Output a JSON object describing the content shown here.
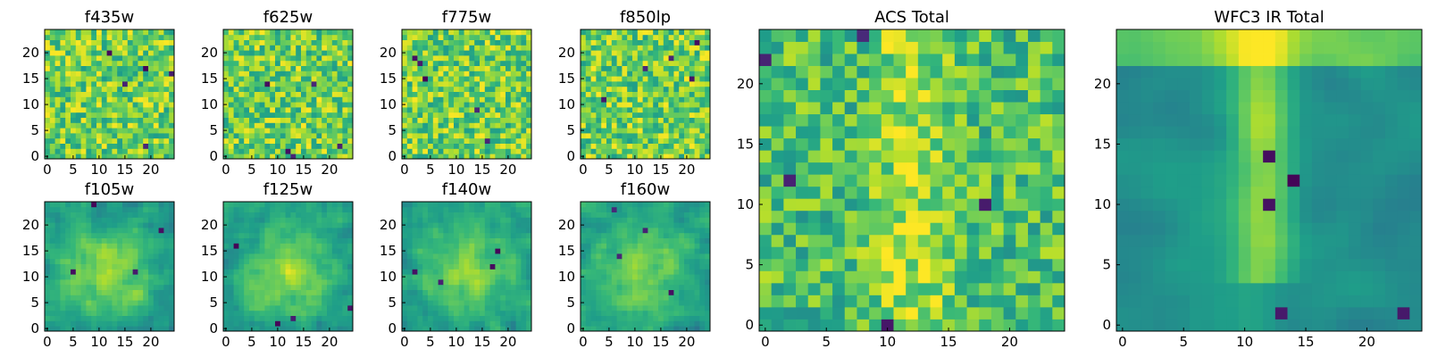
{
  "chart_data": [
    {
      "type": "heatmap",
      "title": "f435w",
      "colormap": "viridis",
      "rows": 25,
      "cols": 25,
      "xlim": [
        0,
        24
      ],
      "ylim": [
        0,
        24
      ],
      "xticks": [
        0,
        5,
        10,
        15,
        20
      ],
      "yticks": [
        0,
        5,
        10,
        15,
        20
      ],
      "structure": "noise",
      "seed": 11
    },
    {
      "type": "heatmap",
      "title": "f625w",
      "colormap": "viridis",
      "rows": 25,
      "cols": 25,
      "xlim": [
        0,
        24
      ],
      "ylim": [
        0,
        24
      ],
      "xticks": [
        0,
        5,
        10,
        15,
        20
      ],
      "yticks": [
        0,
        5,
        10,
        15,
        20
      ],
      "structure": "noise",
      "seed": 23
    },
    {
      "type": "heatmap",
      "title": "f775w",
      "colormap": "viridis",
      "rows": 25,
      "cols": 25,
      "xlim": [
        0,
        24
      ],
      "ylim": [
        0,
        24
      ],
      "xticks": [
        0,
        5,
        10,
        15,
        20
      ],
      "yticks": [
        0,
        5,
        10,
        15,
        20
      ],
      "structure": "noise",
      "seed": 37
    },
    {
      "type": "heatmap",
      "title": "f850lp",
      "colormap": "viridis",
      "rows": 25,
      "cols": 25,
      "xlim": [
        0,
        24
      ],
      "ylim": [
        0,
        24
      ],
      "xticks": [
        0,
        5,
        10,
        15,
        20
      ],
      "yticks": [
        0,
        5,
        10,
        15,
        20
      ],
      "structure": "noise",
      "seed": 41
    },
    {
      "type": "heatmap",
      "title": "f105w",
      "colormap": "viridis",
      "rows": 25,
      "cols": 25,
      "xlim": [
        0,
        24
      ],
      "ylim": [
        0,
        24
      ],
      "xticks": [
        0,
        5,
        10,
        15,
        20
      ],
      "yticks": [
        0,
        5,
        10,
        15,
        20
      ],
      "structure": "smooth-blob",
      "seed": 53
    },
    {
      "type": "heatmap",
      "title": "f125w",
      "colormap": "viridis",
      "rows": 25,
      "cols": 25,
      "xlim": [
        0,
        24
      ],
      "ylim": [
        0,
        24
      ],
      "xticks": [
        0,
        5,
        10,
        15,
        20
      ],
      "yticks": [
        0,
        5,
        10,
        15,
        20
      ],
      "structure": "smooth-blob",
      "seed": 67
    },
    {
      "type": "heatmap",
      "title": "f140w",
      "colormap": "viridis",
      "rows": 25,
      "cols": 25,
      "xlim": [
        0,
        24
      ],
      "ylim": [
        0,
        24
      ],
      "xticks": [
        0,
        5,
        10,
        15,
        20
      ],
      "yticks": [
        0,
        5,
        10,
        15,
        20
      ],
      "structure": "smooth-blob",
      "seed": 79
    },
    {
      "type": "heatmap",
      "title": "f160w",
      "colormap": "viridis",
      "rows": 25,
      "cols": 25,
      "xlim": [
        0,
        24
      ],
      "ylim": [
        0,
        24
      ],
      "xticks": [
        0,
        5,
        10,
        15,
        20
      ],
      "yticks": [
        0,
        5,
        10,
        15,
        20
      ],
      "structure": "smooth-blob",
      "seed": 83
    },
    {
      "type": "heatmap",
      "title": "ACS Total",
      "colormap": "viridis",
      "rows": 25,
      "cols": 25,
      "xlim": [
        0,
        24
      ],
      "ylim": [
        0,
        24
      ],
      "xticks": [
        0,
        5,
        10,
        15,
        20
      ],
      "yticks": [
        0,
        5,
        10,
        15,
        20
      ],
      "structure": "noise-with-central-column",
      "seed": 97
    },
    {
      "type": "heatmap",
      "title": "WFC3 IR Total",
      "colormap": "viridis",
      "rows": 25,
      "cols": 25,
      "xlim": [
        0,
        24
      ],
      "ylim": [
        0,
        24
      ],
      "xticks": [
        0,
        5,
        10,
        15,
        20
      ],
      "yticks": [
        0,
        5,
        10,
        15,
        20
      ],
      "structure": "smooth-with-central-column",
      "seed": 101
    }
  ]
}
